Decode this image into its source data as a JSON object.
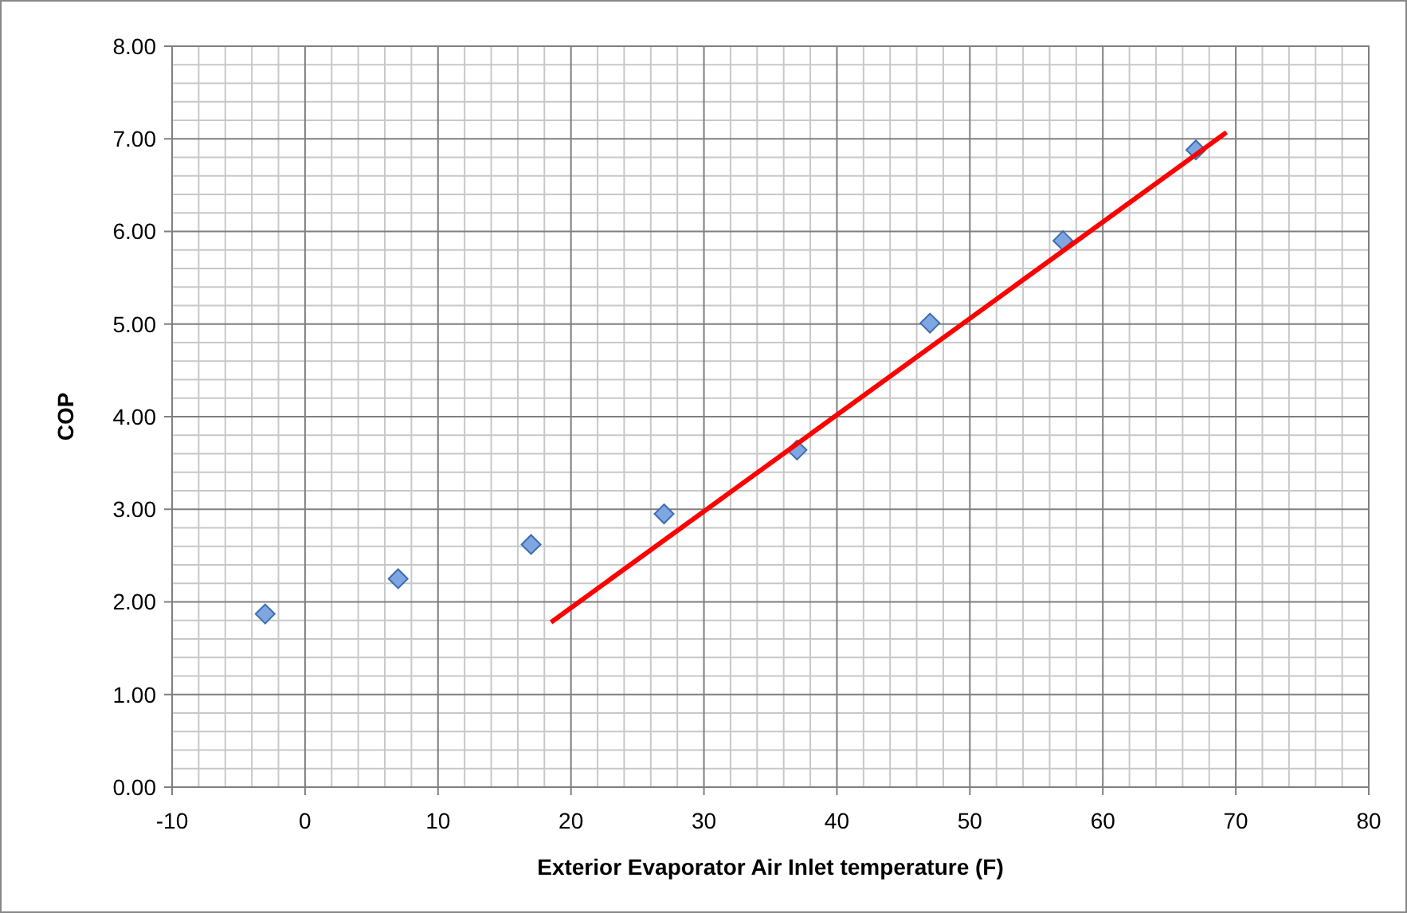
{
  "chart_data": {
    "type": "scatter",
    "xlabel": "Exterior Evaporator Air Inlet temperature (F)",
    "ylabel": "COP",
    "xlim": [
      -10,
      80
    ],
    "xticks": [
      -10,
      0,
      10,
      20,
      30,
      40,
      50,
      60,
      70,
      80
    ],
    "ylim": [
      0,
      8
    ],
    "yticks": [
      {
        "value": 0,
        "label": "0.00"
      },
      {
        "value": 1,
        "label": "1.00"
      },
      {
        "value": 2,
        "label": "2.00"
      },
      {
        "value": 3,
        "label": "3.00"
      },
      {
        "value": 4,
        "label": "4.00"
      },
      {
        "value": 5,
        "label": "5.00"
      },
      {
        "value": 6,
        "label": "6.00"
      },
      {
        "value": 7,
        "label": "7.00"
      },
      {
        "value": 8,
        "label": "8.00"
      }
    ],
    "grid": true,
    "series": [
      {
        "color": "#7ea6e0",
        "marker": "diamond",
        "x": [
          -3,
          7,
          17,
          27,
          37,
          47,
          57,
          67
        ],
        "values": [
          1.87,
          2.25,
          2.62,
          2.95,
          3.64,
          5.01,
          5.9,
          6.88
        ]
      },
      {
        "type": "line",
        "color": "#ff0000",
        "marker": "none",
        "line_style": "solid",
        "x": [
          18.5,
          69.3
        ],
        "values": [
          1.78,
          7.07
        ]
      }
    ]
  }
}
